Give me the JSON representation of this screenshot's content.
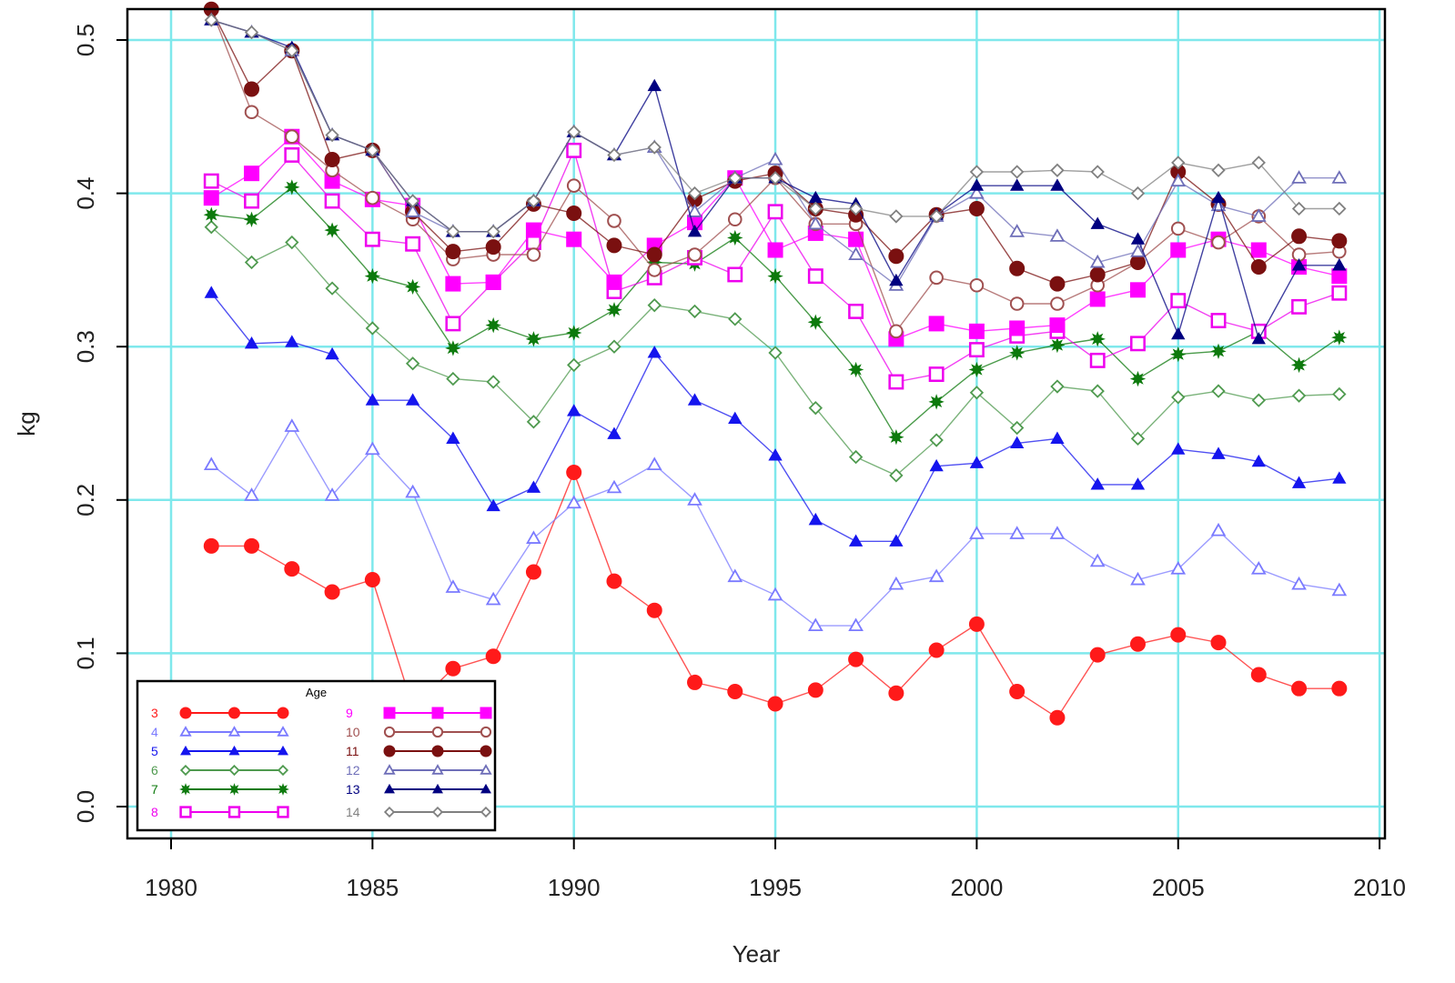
{
  "chart_data": {
    "type": "line",
    "title": "",
    "xlabel": "Year",
    "ylabel": "kg",
    "xlim": [
      1979,
      2009.5
    ],
    "ylim": [
      -0.02,
      0.52
    ],
    "xticks": [
      1980,
      1985,
      1990,
      1995,
      2000,
      2005,
      2010
    ],
    "xtick_labels": [
      "1980",
      "1985",
      "1990",
      "1995",
      "2000",
      "2005",
      "2010"
    ],
    "yticks": [
      0.0,
      0.1,
      0.2,
      0.3,
      0.4,
      0.5
    ],
    "ytick_labels": [
      "0.0",
      "0.1",
      "0.2",
      "0.3",
      "0.4",
      "0.5"
    ],
    "grid": true,
    "grid_color": "#7fe8ec",
    "legend": {
      "title": "Age",
      "placement": "bottom-left"
    },
    "x": [
      1981,
      1982,
      1983,
      1984,
      1985,
      1986,
      1987,
      1988,
      1989,
      1990,
      1991,
      1992,
      1993,
      1994,
      1995,
      1996,
      1997,
      1998,
      1999,
      2000,
      2001,
      2002,
      2003,
      2004,
      2005,
      2006,
      2007,
      2008,
      2009
    ],
    "series": [
      {
        "name": "3",
        "color": "#ff1a1a",
        "marker": "filled-circle",
        "values": [
          0.17,
          0.17,
          0.155,
          0.14,
          0.148,
          0.065,
          0.09,
          0.098,
          0.153,
          0.218,
          0.147,
          0.128,
          0.081,
          0.075,
          0.067,
          0.076,
          0.096,
          0.074,
          0.102,
          0.119,
          0.075,
          0.058,
          0.099,
          0.106,
          0.112,
          0.107,
          0.086,
          0.077,
          0.077
        ]
      },
      {
        "name": "4",
        "color": "#7a7aff",
        "marker": "open-triangle",
        "values": [
          0.223,
          0.203,
          0.248,
          0.203,
          0.233,
          0.205,
          0.143,
          0.135,
          0.175,
          0.198,
          0.208,
          0.223,
          0.2,
          0.15,
          0.138,
          0.118,
          0.118,
          0.145,
          0.15,
          0.178,
          0.178,
          0.178,
          0.16,
          0.148,
          0.155,
          0.18,
          0.155,
          0.145,
          0.141
        ]
      },
      {
        "name": "5",
        "color": "#1515ee",
        "marker": "filled-triangle",
        "values": [
          0.335,
          0.302,
          0.303,
          0.295,
          0.265,
          0.265,
          0.24,
          0.196,
          0.208,
          0.258,
          0.243,
          0.296,
          0.265,
          0.253,
          0.229,
          0.187,
          0.173,
          0.173,
          0.222,
          0.224,
          0.237,
          0.24,
          0.21,
          0.21,
          0.233,
          0.23,
          0.225,
          0.211,
          0.214
        ]
      },
      {
        "name": "6",
        "color": "#4f9a4f",
        "marker": "open-diamond",
        "values": [
          0.378,
          0.355,
          0.368,
          0.338,
          0.312,
          0.289,
          0.279,
          0.277,
          0.251,
          0.288,
          0.3,
          0.327,
          0.323,
          0.318,
          0.296,
          0.26,
          0.228,
          0.216,
          0.239,
          0.27,
          0.247,
          0.274,
          0.271,
          0.24,
          0.267,
          0.271,
          0.265,
          0.268,
          0.269
        ]
      },
      {
        "name": "7",
        "color": "#0d7a0d",
        "marker": "filled-star",
        "values": [
          0.386,
          0.383,
          0.404,
          0.376,
          0.346,
          0.339,
          0.299,
          0.314,
          0.305,
          0.309,
          0.324,
          0.355,
          0.354,
          0.371,
          0.346,
          0.316,
          0.285,
          0.241,
          0.264,
          0.285,
          0.296,
          0.301,
          0.305,
          0.279,
          0.295,
          0.297,
          0.31,
          0.288,
          0.306
        ]
      },
      {
        "name": "8",
        "color": "#ee00ee",
        "marker": "open-square",
        "values": [
          0.408,
          0.395,
          0.425,
          0.395,
          0.37,
          0.367,
          0.315,
          0.342,
          0.368,
          0.428,
          0.336,
          0.345,
          0.358,
          0.347,
          0.388,
          0.346,
          0.323,
          0.277,
          0.282,
          0.298,
          0.307,
          0.31,
          0.291,
          0.302,
          0.33,
          0.317,
          0.31,
          0.326,
          0.335
        ]
      },
      {
        "name": "9",
        "color": "#ff00ff",
        "marker": "filled-square",
        "values": [
          0.397,
          0.413,
          0.437,
          0.408,
          0.396,
          0.392,
          0.341,
          0.342,
          0.376,
          0.37,
          0.342,
          0.366,
          0.381,
          0.41,
          0.363,
          0.374,
          0.37,
          0.305,
          0.315,
          0.31,
          0.312,
          0.314,
          0.331,
          0.337,
          0.363,
          0.37,
          0.363,
          0.352,
          0.346
        ]
      },
      {
        "name": "10",
        "color": "#a05050",
        "marker": "open-circle",
        "values": [
          0.52,
          0.453,
          0.437,
          0.415,
          0.397,
          0.383,
          0.357,
          0.36,
          0.36,
          0.405,
          0.382,
          0.35,
          0.36,
          0.383,
          0.41,
          0.38,
          0.38,
          0.31,
          0.345,
          0.34,
          0.328,
          0.328,
          0.34,
          0.355,
          0.377,
          0.368,
          0.385,
          0.36,
          0.362
        ]
      },
      {
        "name": "11",
        "color": "#7a1010",
        "marker": "filled-circle",
        "values": [
          0.52,
          0.468,
          0.493,
          0.422,
          0.428,
          0.388,
          0.362,
          0.365,
          0.393,
          0.387,
          0.366,
          0.36,
          0.396,
          0.408,
          0.413,
          0.39,
          0.386,
          0.359,
          0.386,
          0.39,
          0.351,
          0.341,
          0.347,
          0.355,
          0.414,
          0.393,
          0.352,
          0.372,
          0.369
        ]
      },
      {
        "name": "12",
        "color": "#6e6eb8",
        "marker": "open-triangle",
        "values": [
          0.513,
          0.505,
          0.493,
          0.438,
          0.428,
          0.388,
          0.375,
          0.375,
          0.395,
          0.44,
          0.425,
          0.43,
          0.388,
          0.41,
          0.422,
          0.38,
          0.36,
          0.34,
          0.385,
          0.4,
          0.375,
          0.372,
          0.355,
          0.362,
          0.408,
          0.392,
          0.385,
          0.41,
          0.41
        ]
      },
      {
        "name": "13",
        "color": "#000080",
        "marker": "filled-triangle",
        "values": [
          0.513,
          0.505,
          0.495,
          0.438,
          0.428,
          0.395,
          0.375,
          0.375,
          0.395,
          0.44,
          0.425,
          0.47,
          0.375,
          0.41,
          0.41,
          0.397,
          0.393,
          0.343,
          0.386,
          0.405,
          0.405,
          0.405,
          0.38,
          0.37,
          0.308,
          0.397,
          0.305,
          0.353,
          0.353
        ]
      },
      {
        "name": "14",
        "color": "#808080",
        "marker": "open-diamond",
        "values": [
          0.513,
          0.505,
          0.493,
          0.438,
          0.428,
          0.395,
          0.375,
          0.375,
          0.395,
          0.44,
          0.425,
          0.43,
          0.4,
          0.41,
          0.41,
          0.39,
          0.39,
          0.385,
          0.385,
          0.414,
          0.414,
          0.415,
          0.414,
          0.4,
          0.42,
          0.415,
          0.42,
          0.39,
          0.39
        ]
      }
    ]
  }
}
